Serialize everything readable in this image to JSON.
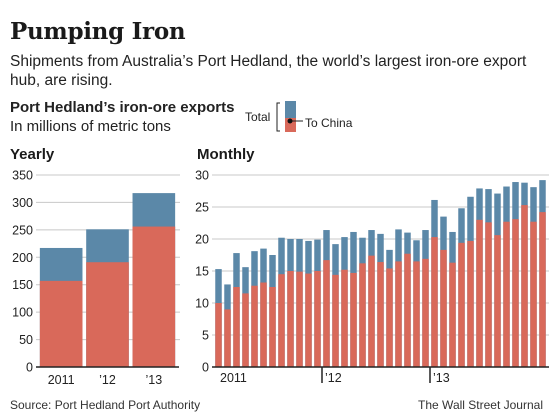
{
  "header": {
    "title": "Pumping Iron",
    "subtitle": "Shipments from Australia’s Port Hedland, the world’s largest iron-ore export hub, are rising.",
    "chart_title": "Port Hedland’s iron-ore exports",
    "chart_unit": "In millions of metric tons"
  },
  "legend": {
    "total_label": "Total",
    "china_label": "To China"
  },
  "footer": {
    "source": "Source: Port Hedland Port Authority",
    "credit": "The Wall Street Journal"
  },
  "colors": {
    "total": "#5b88a8",
    "china": "#d9695a",
    "gridline": "#c8c8c8",
    "axis": "#222222"
  },
  "chart_data": [
    {
      "type": "bar",
      "title": "Yearly",
      "stacked_overlay": true,
      "categories": [
        "2011",
        "’12",
        "’13"
      ],
      "series": [
        {
          "name": "Total",
          "values": [
            217,
            251,
            317
          ]
        },
        {
          "name": "To China",
          "values": [
            157,
            191,
            256
          ]
        }
      ],
      "ylim": [
        0,
        350
      ],
      "yticks": [
        0,
        50,
        100,
        150,
        200,
        250,
        300,
        350
      ],
      "grid": true
    },
    {
      "type": "bar",
      "title": "Monthly",
      "stacked_overlay": true,
      "year_labels": [
        {
          "label": "2011",
          "index": 0
        },
        {
          "label": "’12",
          "index": 12
        },
        {
          "label": "’13",
          "index": 24
        }
      ],
      "series": [
        {
          "name": "Total",
          "values": [
            15.3,
            12.9,
            17.8,
            15.6,
            18.1,
            18.5,
            17.5,
            20.2,
            20.0,
            20.0,
            19.7,
            19.9,
            21.4,
            19.2,
            20.3,
            21.1,
            20.2,
            21.4,
            20.8,
            18.3,
            21.5,
            21.0,
            19.8,
            21.4,
            26.1,
            23.5,
            21.1,
            24.8,
            26.6,
            27.9,
            27.8,
            27.1,
            28.2,
            28.9,
            28.8,
            28.1,
            29.2
          ]
        },
        {
          "name": "To China",
          "values": [
            10.0,
            9.0,
            12.5,
            11.5,
            12.7,
            13.2,
            12.5,
            14.5,
            15.0,
            14.9,
            14.6,
            15.0,
            16.7,
            14.4,
            15.2,
            14.7,
            16.2,
            17.4,
            16.4,
            15.4,
            16.5,
            17.7,
            16.5,
            16.9,
            20.3,
            18.3,
            16.3,
            19.4,
            19.7,
            23.0,
            22.6,
            20.6,
            22.7,
            23.1,
            25.3,
            22.7,
            24.2
          ]
        }
      ],
      "ylim": [
        0,
        30
      ],
      "yticks": [
        0,
        5,
        10,
        15,
        20,
        25,
        30
      ],
      "grid": true
    }
  ]
}
